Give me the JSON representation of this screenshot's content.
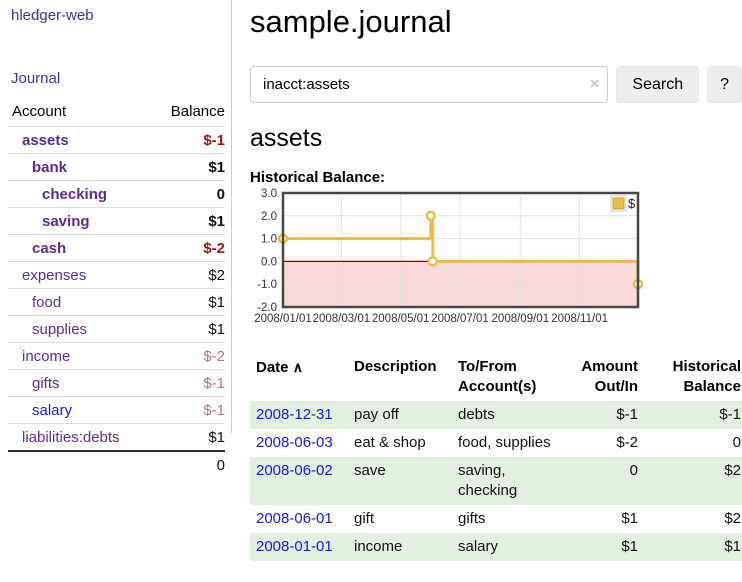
{
  "app": {
    "brand": "hledger-web",
    "nav": {
      "journal": "Journal"
    }
  },
  "icons": {
    "clear": "×",
    "sort_asc": "∧"
  },
  "colors": {
    "link_purple": "#5c2d91",
    "link_blue": "#1717e6",
    "negative_strong": "#a31515",
    "negative_soft": "#bb7575",
    "row_stripe_green": "#e2f0e0",
    "chart_line_gold": "#e4bf4b",
    "chart_negative_fill": "#f9dada",
    "chart_zero_line": "#8b0000"
  },
  "sidebar": {
    "header": {
      "account": "Account",
      "balance": "Balance"
    },
    "rows": [
      {
        "name": "assets",
        "balance": "$-1",
        "indent": 1,
        "bold": true,
        "tone": "neg-strong",
        "blue": false
      },
      {
        "name": "bank",
        "balance": "$1",
        "indent": 2,
        "bold": true,
        "tone": "",
        "blue": false
      },
      {
        "name": "checking",
        "balance": "0",
        "indent": 3,
        "bold": true,
        "tone": "",
        "blue": false
      },
      {
        "name": "saving",
        "balance": "$1",
        "indent": 3,
        "bold": true,
        "tone": "",
        "blue": false
      },
      {
        "name": "cash",
        "balance": "$-2",
        "indent": 2,
        "bold": true,
        "tone": "neg-strong",
        "blue": false
      },
      {
        "name": "expenses",
        "balance": "$2",
        "indent": 1,
        "bold": false,
        "tone": "",
        "blue": false
      },
      {
        "name": "food",
        "balance": "$1",
        "indent": 2,
        "bold": false,
        "tone": "",
        "blue": false
      },
      {
        "name": "supplies",
        "balance": "$1",
        "indent": 2,
        "bold": false,
        "tone": "",
        "blue": false
      },
      {
        "name": "income",
        "balance": "$-2",
        "indent": 1,
        "bold": false,
        "tone": "neg-soft",
        "blue": false
      },
      {
        "name": "gifts",
        "balance": "$-1",
        "indent": 2,
        "bold": false,
        "tone": "neg-soft",
        "blue": false
      },
      {
        "name": "salary",
        "balance": "$-1",
        "indent": 2,
        "bold": false,
        "tone": "neg-soft",
        "blue": true
      },
      {
        "name": "liabilities:debts",
        "balance": "$1",
        "indent": 1,
        "bold": false,
        "tone": "",
        "blue": false
      }
    ],
    "total": "0"
  },
  "main": {
    "title": "sample.journal",
    "search": {
      "value": "inacct:assets",
      "button_label": "Search",
      "help_label": "?"
    },
    "account_heading": "assets",
    "chart_heading": "Historical Balance:"
  },
  "chart_data": {
    "type": "line",
    "title": "Historical Balance:",
    "step": true,
    "series": [
      {
        "name": "$",
        "points": [
          [
            "2008-01-01",
            1.0
          ],
          [
            "2008-06-01",
            2.0
          ],
          [
            "2008-06-03",
            0.0
          ],
          [
            "2008-12-31",
            -1.0
          ]
        ]
      }
    ],
    "xrange": [
      "2008-01-01",
      "2008-12-31"
    ],
    "ylim": [
      -2.0,
      3.0
    ],
    "yticks": [
      3.0,
      2.0,
      1.0,
      0.0,
      -1.0,
      -2.0
    ],
    "xtick_labels": [
      "2008/01/01",
      "2008/03/01",
      "2008/05/01",
      "2008/07/01",
      "2008/09/01",
      "2008/11/01"
    ],
    "legend": {
      "label": "$",
      "position": "top-right"
    },
    "grid": true,
    "negative_region_shaded": true
  },
  "register": {
    "headers": {
      "date": "Date",
      "description": "Description",
      "accounts": "To/From Account(s)",
      "amount": "Amount Out/In",
      "balance": "Historical Balance"
    },
    "rows": [
      {
        "date": "2008-12-31",
        "description": "pay off",
        "accounts": "debts",
        "amount": "$-1",
        "amount_neg": true,
        "balance": "$-1",
        "balance_neg": true
      },
      {
        "date": "2008-06-03",
        "description": "eat & shop",
        "accounts": "food, supplies",
        "amount": "$-2",
        "amount_neg": true,
        "balance": "0",
        "balance_neg": false
      },
      {
        "date": "2008-06-02",
        "description": "save",
        "accounts": "saving, checking",
        "amount": "0",
        "amount_neg": false,
        "balance": "$2",
        "balance_neg": false
      },
      {
        "date": "2008-06-01",
        "description": "gift",
        "accounts": "gifts",
        "amount": "$1",
        "amount_neg": false,
        "balance": "$2",
        "balance_neg": false
      },
      {
        "date": "2008-01-01",
        "description": "income",
        "accounts": "salary",
        "amount": "$1",
        "amount_neg": false,
        "balance": "$1",
        "balance_neg": false
      }
    ]
  }
}
